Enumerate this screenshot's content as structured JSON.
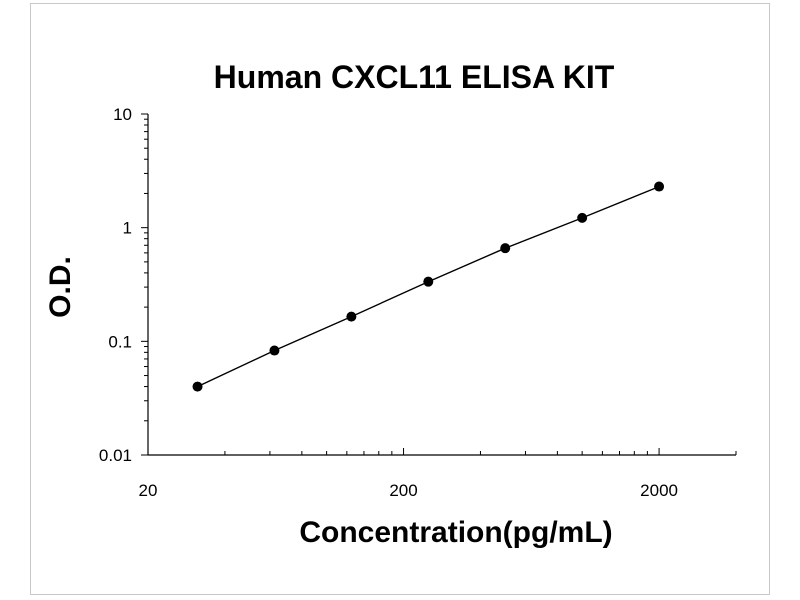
{
  "chart_data": {
    "type": "scatter",
    "title": "Human CXCL11 ELISA KIT",
    "xlabel": "Concentration(pg/mL)",
    "ylabel": "O.D.",
    "xscale": "log",
    "yscale": "log",
    "xlim": [
      20,
      4000
    ],
    "ylim": [
      0.01,
      10
    ],
    "xticks": [
      20,
      200,
      2000
    ],
    "yticks": [
      0.01,
      0.1,
      1,
      10
    ],
    "xtick_labels": [
      "20",
      "200",
      "2000"
    ],
    "ytick_labels": [
      "0.01",
      "0.1",
      "1",
      "10"
    ],
    "grid": false,
    "legend": "none",
    "series": [
      {
        "x": [
          31.25,
          62.5,
          125,
          250,
          500,
          1000,
          2000
        ],
        "y": [
          0.04,
          0.083,
          0.165,
          0.335,
          0.66,
          1.22,
          2.3
        ]
      }
    ],
    "fit_line": true,
    "marker_color": "#000000",
    "line_color": "#000000"
  }
}
